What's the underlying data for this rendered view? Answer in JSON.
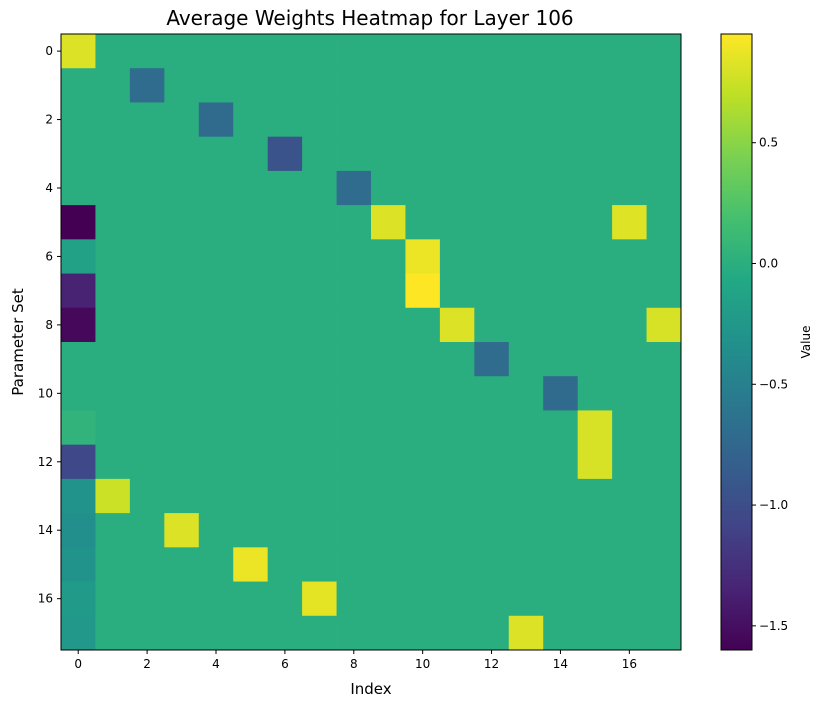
{
  "chart_data": {
    "type": "heatmap",
    "title": "Average Weights Heatmap for Layer 106",
    "xlabel": "Index",
    "ylabel": "Parameter Set",
    "colorbar_label": "Value",
    "colormap": "viridis",
    "vmin": -1.6,
    "vmax": 0.95,
    "n_rows": 18,
    "n_cols": 18,
    "x_ticks": [
      0,
      2,
      4,
      6,
      8,
      10,
      12,
      14,
      16
    ],
    "y_ticks": [
      0,
      2,
      4,
      6,
      8,
      10,
      12,
      14,
      16
    ],
    "colorbar_ticks": [
      0.5,
      0.0,
      -0.5,
      -1.0,
      -1.5
    ],
    "colorbar_tick_labels": [
      "0.5",
      "0.0",
      "−0.5",
      "−1.0",
      "−1.5"
    ],
    "background_value": 0.0,
    "values": [
      [
        0.82,
        0,
        0,
        0,
        0,
        0,
        0,
        0,
        0,
        0,
        0,
        0,
        0,
        0,
        0,
        0,
        0,
        0
      ],
      [
        0,
        0,
        -0.7,
        0,
        0,
        0,
        0,
        0,
        0,
        0,
        0,
        0,
        0,
        0,
        0,
        0,
        0,
        0
      ],
      [
        0,
        0,
        0,
        0,
        -0.72,
        0,
        0,
        0,
        0,
        0,
        0,
        0,
        0,
        0,
        0,
        0,
        0,
        0
      ],
      [
        0,
        0,
        0,
        0,
        0,
        0,
        -0.95,
        0,
        0,
        0,
        0,
        0,
        0,
        0,
        0,
        0,
        0,
        0
      ],
      [
        0,
        0,
        0,
        0,
        0,
        0,
        0,
        0,
        -0.7,
        0,
        0,
        0,
        0,
        0,
        0,
        0,
        0,
        0
      ],
      [
        -1.6,
        0,
        0,
        0,
        0,
        0,
        0,
        0,
        0,
        0.82,
        0,
        0,
        0,
        0,
        0,
        0,
        0.83,
        0
      ],
      [
        -0.15,
        0,
        0,
        0,
        0,
        0,
        0,
        0,
        0,
        0,
        0.88,
        0,
        0,
        0,
        0,
        0,
        0,
        0
      ],
      [
        -1.35,
        0,
        0,
        0,
        0,
        0,
        0,
        0,
        0,
        0,
        0.95,
        0,
        0,
        0,
        0,
        0,
        0,
        0
      ],
      [
        -1.55,
        0,
        0,
        0,
        0,
        0,
        0,
        0,
        0,
        0,
        0,
        0.82,
        0,
        0,
        0,
        0,
        0,
        0.8
      ],
      [
        0,
        0,
        0,
        0,
        0,
        0,
        0,
        0,
        0,
        0,
        0,
        0,
        -0.7,
        0,
        0,
        0,
        0,
        0
      ],
      [
        0,
        0,
        0,
        0,
        0,
        0,
        0,
        0,
        0,
        0,
        0,
        0,
        0,
        0,
        -0.72,
        0,
        0,
        0
      ],
      [
        0.05,
        0,
        0,
        0,
        0,
        0,
        0,
        0,
        0,
        0,
        0,
        0,
        0,
        0,
        0,
        0.8,
        0,
        0
      ],
      [
        -1.05,
        0,
        0,
        0,
        0,
        0,
        0,
        0,
        0,
        0,
        0,
        0,
        0,
        0,
        0,
        0.8,
        0,
        0
      ],
      [
        -0.3,
        0.75,
        0,
        0,
        0,
        0,
        0,
        0,
        0,
        0,
        0,
        0,
        0,
        0,
        0,
        0,
        0,
        0
      ],
      [
        -0.35,
        0,
        0,
        0.82,
        0,
        0,
        0,
        0,
        0,
        0,
        0,
        0,
        0,
        0,
        0,
        0,
        0,
        0
      ],
      [
        -0.3,
        0,
        0,
        0,
        0,
        0.88,
        0,
        0,
        0,
        0,
        0,
        0,
        0,
        0,
        0,
        0,
        0,
        0
      ],
      [
        -0.22,
        0,
        0,
        0,
        0,
        0,
        0,
        0.85,
        0,
        0,
        0,
        0,
        0,
        0,
        0,
        0,
        0,
        0
      ],
      [
        -0.25,
        0,
        0,
        0,
        0,
        0,
        0,
        0,
        0,
        0,
        0,
        0,
        0,
        0.82,
        0,
        0,
        0,
        0
      ]
    ]
  }
}
